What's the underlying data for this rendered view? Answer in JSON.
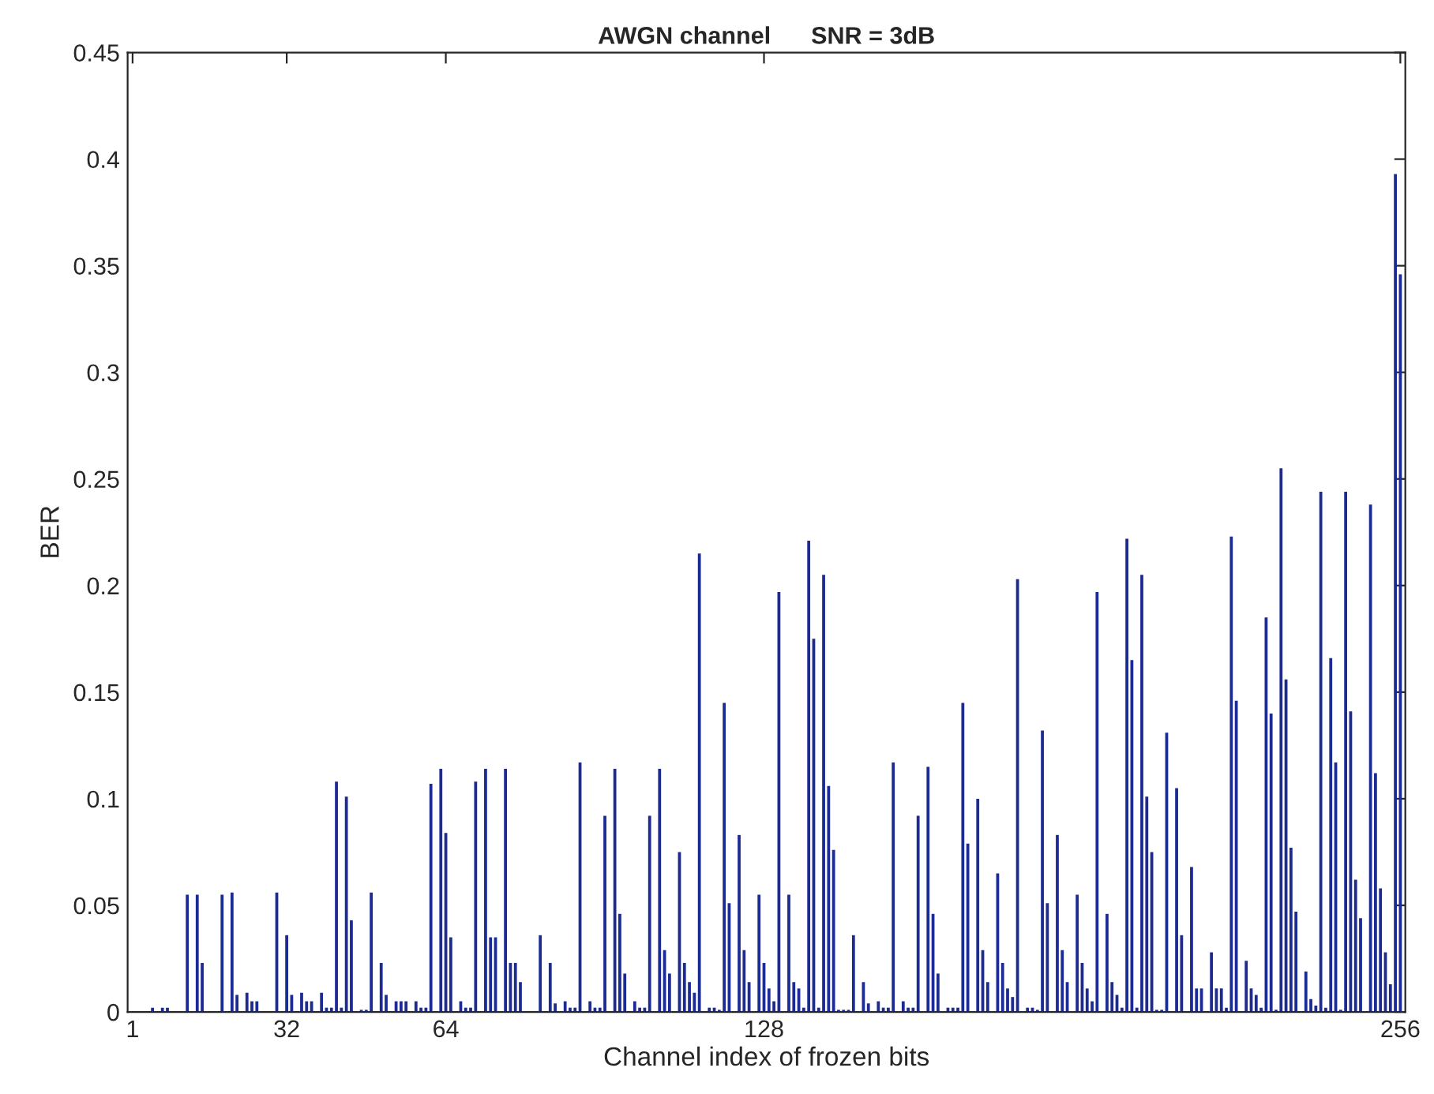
{
  "chart_data": {
    "type": "bar",
    "title": "AWGN channel      SNR = 3dB",
    "xlabel": "Channel index of frozen bits",
    "ylabel": "BER",
    "x": [
      5,
      7,
      8,
      12,
      14,
      15,
      19,
      21,
      22,
      24,
      25,
      26,
      30,
      32,
      33,
      35,
      36,
      37,
      39,
      40,
      41,
      42,
      43,
      44,
      45,
      47,
      48,
      49,
      51,
      52,
      54,
      55,
      56,
      58,
      59,
      60,
      61,
      63,
      64,
      65,
      67,
      68,
      69,
      70,
      72,
      73,
      74,
      76,
      77,
      78,
      79,
      83,
      85,
      86,
      88,
      89,
      90,
      91,
      93,
      94,
      95,
      96,
      98,
      99,
      100,
      102,
      103,
      104,
      105,
      107,
      108,
      109,
      111,
      112,
      113,
      114,
      115,
      117,
      118,
      119,
      120,
      121,
      123,
      124,
      125,
      127,
      128,
      129,
      130,
      131,
      133,
      134,
      135,
      136,
      137,
      138,
      139,
      140,
      141,
      142,
      143,
      144,
      145,
      146,
      148,
      149,
      151,
      152,
      153,
      154,
      156,
      157,
      158,
      159,
      161,
      162,
      163,
      165,
      166,
      167,
      168,
      169,
      171,
      172,
      173,
      175,
      176,
      177,
      178,
      179,
      181,
      182,
      183,
      184,
      185,
      187,
      188,
      189,
      191,
      192,
      193,
      194,
      195,
      197,
      198,
      199,
      200,
      201,
      202,
      203,
      204,
      205,
      206,
      207,
      208,
      209,
      211,
      212,
      214,
      215,
      216,
      218,
      219,
      220,
      221,
      222,
      223,
      225,
      226,
      227,
      228,
      229,
      230,
      231,
      232,
      233,
      234,
      235,
      237,
      238,
      239,
      240,
      241,
      242,
      243,
      244,
      245,
      246,
      247,
      248,
      250,
      251,
      252,
      253,
      254,
      255,
      256
    ],
    "values": [
      0.002,
      0.002,
      0.002,
      0.055,
      0.055,
      0.023,
      0.055,
      0.056,
      0.008,
      0.009,
      0.005,
      0.005,
      0.056,
      0.036,
      0.008,
      0.009,
      0.005,
      0.005,
      0.009,
      0.002,
      0.002,
      0.108,
      0.002,
      0.101,
      0.043,
      0.001,
      0.001,
      0.056,
      0.023,
      0.008,
      0.005,
      0.005,
      0.005,
      0.005,
      0.002,
      0.002,
      0.107,
      0.114,
      0.084,
      0.035,
      0.005,
      0.002,
      0.002,
      0.108,
      0.114,
      0.035,
      0.035,
      0.114,
      0.023,
      0.023,
      0.014,
      0.036,
      0.023,
      0.004,
      0.005,
      0.002,
      0.002,
      0.117,
      0.005,
      0.002,
      0.002,
      0.092,
      0.114,
      0.046,
      0.018,
      0.005,
      0.002,
      0.002,
      0.092,
      0.114,
      0.029,
      0.018,
      0.075,
      0.023,
      0.014,
      0.009,
      0.215,
      0.002,
      0.002,
      0.001,
      0.145,
      0.051,
      0.083,
      0.029,
      0.014,
      0.055,
      0.023,
      0.011,
      0.005,
      0.197,
      0.055,
      0.014,
      0.011,
      0.002,
      0.221,
      0.175,
      0.002,
      0.205,
      0.106,
      0.076,
      0.001,
      0.001,
      0.001,
      0.036,
      0.014,
      0.004,
      0.005,
      0.002,
      0.002,
      0.117,
      0.005,
      0.002,
      0.002,
      0.092,
      0.115,
      0.046,
      0.018,
      0.002,
      0.002,
      0.002,
      0.145,
      0.079,
      0.1,
      0.029,
      0.014,
      0.065,
      0.023,
      0.011,
      0.007,
      0.203,
      0.002,
      0.002,
      0.001,
      0.132,
      0.051,
      0.083,
      0.029,
      0.014,
      0.055,
      0.023,
      0.011,
      0.005,
      0.197,
      0.046,
      0.014,
      0.008,
      0.002,
      0.222,
      0.165,
      0.002,
      0.205,
      0.101,
      0.075,
      0.001,
      0.001,
      0.131,
      0.105,
      0.036,
      0.068,
      0.011,
      0.011,
      0.028,
      0.011,
      0.011,
      0.002,
      0.223,
      0.146,
      0.024,
      0.011,
      0.008,
      0.002,
      0.185,
      0.14,
      0.001,
      0.255,
      0.156,
      0.077,
      0.047,
      0.019,
      0.006,
      0.003,
      0.244,
      0.002,
      0.166,
      0.117,
      0.001,
      0.244,
      0.141,
      0.062,
      0.044,
      0.238,
      0.112,
      0.058,
      0.028,
      0.013,
      0.393,
      0.346
    ],
    "color": "#1c2a93",
    "xlim": [
      0,
      257
    ],
    "xticks": [
      1,
      32,
      64,
      128,
      256
    ],
    "ylim": [
      0,
      0.45
    ],
    "yticks": [
      0,
      0.05,
      0.1,
      0.15,
      0.2,
      0.25,
      0.3,
      0.35,
      0.4,
      0.45
    ],
    "grid": false,
    "legend": false
  }
}
